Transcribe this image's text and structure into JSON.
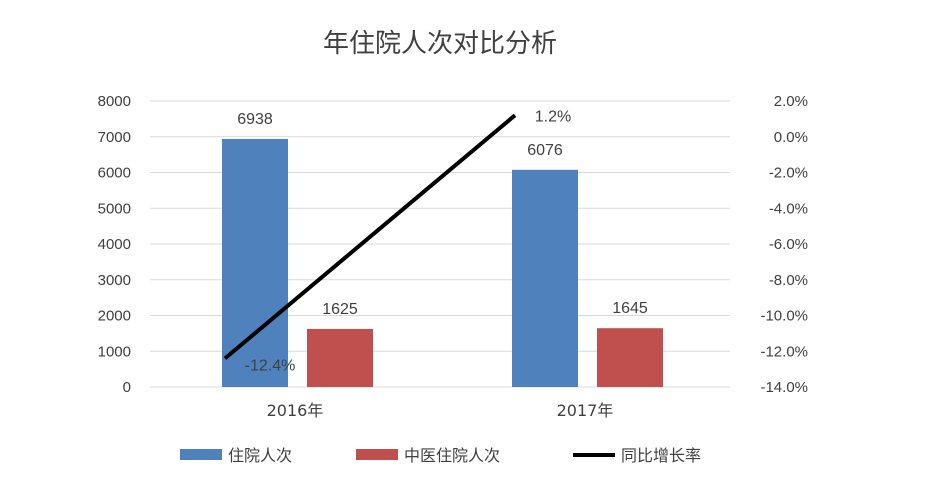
{
  "chart_data": {
    "type": "bar",
    "title": "年住院人次对比分析",
    "categories": [
      "2016年",
      "2017年"
    ],
    "series": [
      {
        "name": "住院人次",
        "kind": "bar",
        "axis": "left",
        "color": "#4f81bd",
        "values": [
          6938,
          6076
        ],
        "labels": [
          "6938",
          "6076"
        ]
      },
      {
        "name": "中医住院人次",
        "kind": "bar",
        "axis": "left",
        "color": "#c0504d",
        "values": [
          1625,
          1645
        ],
        "labels": [
          "1625",
          "1645"
        ]
      },
      {
        "name": "同比增长率",
        "kind": "line",
        "axis": "right",
        "color": "#000000",
        "values": [
          -12.4,
          1.2
        ],
        "labels": [
          "-12.4%",
          "1.2%"
        ]
      }
    ],
    "y_left": {
      "min": 0,
      "max": 8000,
      "step": 1000,
      "ticks": [
        "0",
        "1000",
        "2000",
        "3000",
        "4000",
        "5000",
        "6000",
        "7000",
        "8000"
      ]
    },
    "y_right": {
      "min": -14,
      "max": 2,
      "step": 2,
      "ticks": [
        "-14.0%",
        "-12.0%",
        "-10.0%",
        "-8.0%",
        "-6.0%",
        "-4.0%",
        "-2.0%",
        "0.0%",
        "2.0%"
      ]
    },
    "grid": true,
    "legend_position": "bottom"
  }
}
